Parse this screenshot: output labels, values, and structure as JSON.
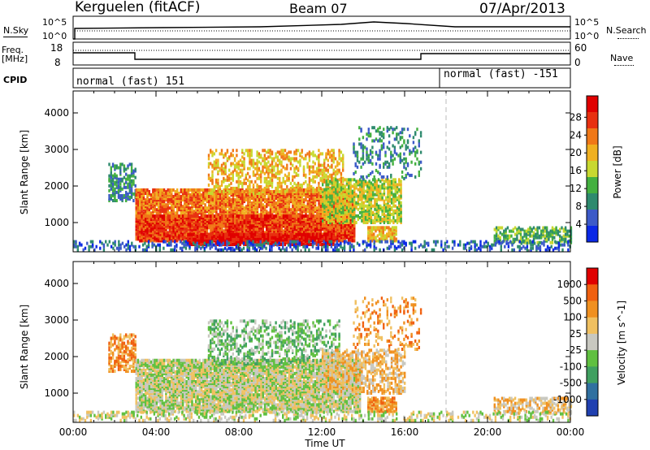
{
  "header": {
    "station": "Kerguelen (fitACF)",
    "beam": "Beam 07",
    "date": "07/Apr/2013"
  },
  "strips": {
    "nsky_label": "N.Sky",
    "nsky_ticks": [
      "10^5",
      "10^0"
    ],
    "nsearch_label": "N.Search",
    "nsearch_ticks": [
      "10^5",
      "10^0"
    ],
    "freq_label_1": "Freq.",
    "freq_label_2": "[MHz]",
    "freq_ticks": [
      "18",
      "8"
    ],
    "nave_label": "Nave",
    "nave_ticks": [
      "60",
      "0"
    ],
    "cpid_label": "CPID",
    "cpid_1": "normal (fast) 151",
    "cpid_2": "normal (fast) -151"
  },
  "chart_data": [
    {
      "type": "heatmap",
      "name": "power",
      "ylabel": "Slant Range [km]",
      "ylim": [
        200,
        4600
      ],
      "yticks": [
        "1000",
        "2000",
        "3000",
        "4000"
      ],
      "colorbar_label": "Power [dB]",
      "colorbar_ticks": [
        "4",
        "8",
        "12",
        "16",
        "20",
        "24",
        "28"
      ],
      "colors": [
        "#0a28e6",
        "#3c5ac8",
        "#2e8a6e",
        "#44b040",
        "#c8d830",
        "#f0b020",
        "#f07818",
        "#e83010",
        "#e00000"
      ]
    },
    {
      "type": "heatmap",
      "name": "velocity",
      "xlabel": "Time UT",
      "ylabel": "Slant Range [km]",
      "ylim": [
        200,
        4600
      ],
      "xlim": [
        "00:00",
        "24:00"
      ],
      "xticks": [
        "00:00",
        "04:00",
        "08:00",
        "12:00",
        "16:00",
        "20:00",
        "00:00"
      ],
      "yticks": [
        "1000",
        "2000",
        "3000",
        "4000"
      ],
      "colorbar_label": "Velocity [m s^-1]",
      "colorbar_ticks": [
        "1000",
        "500",
        "100",
        "25",
        "-25",
        "-100",
        "-500",
        "-1000"
      ],
      "colors": [
        "#2040b0",
        "#3070a0",
        "#40a060",
        "#60c040",
        "#c8c8c0",
        "#f0c060",
        "#f09020",
        "#f06010",
        "#e00000"
      ]
    }
  ]
}
